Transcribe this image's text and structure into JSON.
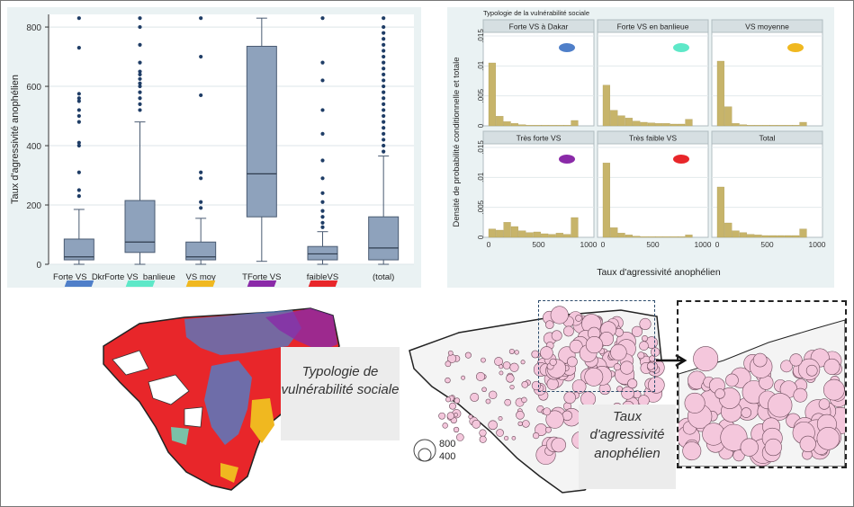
{
  "boxplot": {
    "ylabel": "Taux d'agressivité anophélien",
    "yticks": [
      0,
      200,
      400,
      600,
      800
    ],
    "legend_colors": [
      "#4f7fc9",
      "#5ee8c8",
      "#f0b820",
      "#8a2aa8",
      "#e8262a"
    ]
  },
  "histograms": {
    "title": "Typologie de la vulnérabilité sociale",
    "ylabel": "Densité de probabilité conditionnelle et totale",
    "xlabel": "Taux d'agressivité anophélien",
    "yticks": [
      "0",
      ".005",
      ".01",
      ".015"
    ],
    "xticks": [
      "0",
      "500",
      "1000"
    ]
  },
  "maps": {
    "typology_caption": "Typologie de vulnérabilité sociale",
    "rate_caption": "Taux d'agressivité anophélien",
    "circle_legend": [
      "800",
      "400"
    ]
  },
  "chart_data": [
    {
      "type": "box",
      "ylabel": "Taux d'agressivité anophélien",
      "ylim": [
        0,
        830
      ],
      "categories": [
        "Forte VS_Dkr",
        "Forte VS_banlieue",
        "VS moy",
        "TForte VS",
        "faibleVS",
        "(total)"
      ],
      "boxes": [
        {
          "q1": 15,
          "median": 25,
          "q3": 85,
          "whisker_low": 0,
          "whisker_high": 185,
          "outliers": [
            230,
            250,
            310,
            400,
            410,
            480,
            500,
            520,
            550,
            560,
            575,
            730,
            830
          ]
        },
        {
          "q1": 40,
          "median": 75,
          "q3": 215,
          "whisker_low": 0,
          "whisker_high": 480,
          "outliers": [
            520,
            540,
            560,
            580,
            600,
            610,
            625,
            640,
            650,
            680,
            740,
            800,
            830
          ]
        },
        {
          "q1": 15,
          "median": 25,
          "q3": 75,
          "whisker_low": 0,
          "whisker_high": 155,
          "outliers": [
            190,
            210,
            290,
            310,
            570,
            700,
            830
          ]
        },
        {
          "q1": 160,
          "median": 305,
          "q3": 735,
          "whisker_low": 10,
          "whisker_high": 830,
          "outliers": []
        },
        {
          "q1": 15,
          "median": 35,
          "q3": 60,
          "whisker_low": 0,
          "whisker_high": 110,
          "outliers": [
            125,
            140,
            160,
            180,
            210,
            240,
            290,
            350,
            440,
            520,
            620,
            680,
            830
          ]
        },
        {
          "q1": 15,
          "median": 55,
          "q3": 160,
          "whisker_low": 0,
          "whisker_high": 365,
          "outliers": [
            380,
            400,
            420,
            440,
            460,
            480,
            500,
            520,
            540,
            560,
            580,
            600,
            620,
            640,
            660,
            680,
            700,
            720,
            740,
            760,
            780,
            800,
            830
          ]
        }
      ]
    },
    {
      "type": "bar",
      "title": "Typologie de la vulnérabilité sociale",
      "ylabel": "Densité de probabilité conditionnelle et totale",
      "xlabel": "Taux d'agressivité anophélien",
      "xlim": [
        0,
        1000
      ],
      "ylim": [
        0,
        0.015
      ],
      "bin_width": 75,
      "series": [
        {
          "name": "Forte VS à Dakar",
          "values": [
            0.0105,
            0.0016,
            0.0007,
            0.0004,
            0.0002,
            0.0001,
            0.0001,
            0.0001,
            0.0001,
            0.0001,
            0.0001,
            0.0009
          ]
        },
        {
          "name": "Forte VS en banlieue",
          "values": [
            0.0068,
            0.0026,
            0.0017,
            0.0013,
            0.0008,
            0.0006,
            0.0005,
            0.0004,
            0.0004,
            0.0003,
            0.0003,
            0.0011
          ]
        },
        {
          "name": "VS moyenne",
          "values": [
            0.0108,
            0.0032,
            0.0004,
            0.0002,
            0.0001,
            0.0001,
            0.0001,
            0.0001,
            0.0001,
            0.0001,
            0.0001,
            0.0006
          ]
        },
        {
          "name": "Très forte VS",
          "values": [
            0.0014,
            0.0012,
            0.0025,
            0.0018,
            0.0011,
            0.0008,
            0.0009,
            0.0006,
            0.0005,
            0.0007,
            0.0005,
            0.0033
          ]
        },
        {
          "name": "Très faible VS",
          "values": [
            0.0124,
            0.0016,
            0.0007,
            0.0004,
            0.0002,
            0.0001,
            0.0001,
            0.0001,
            0.0001,
            0.0001,
            0.0001,
            0.0004
          ]
        },
        {
          "name": "Total",
          "values": [
            0.0084,
            0.0024,
            0.0011,
            0.0008,
            0.0005,
            0.0004,
            0.0003,
            0.0003,
            0.0003,
            0.0003,
            0.0003,
            0.0014
          ]
        }
      ]
    }
  ]
}
